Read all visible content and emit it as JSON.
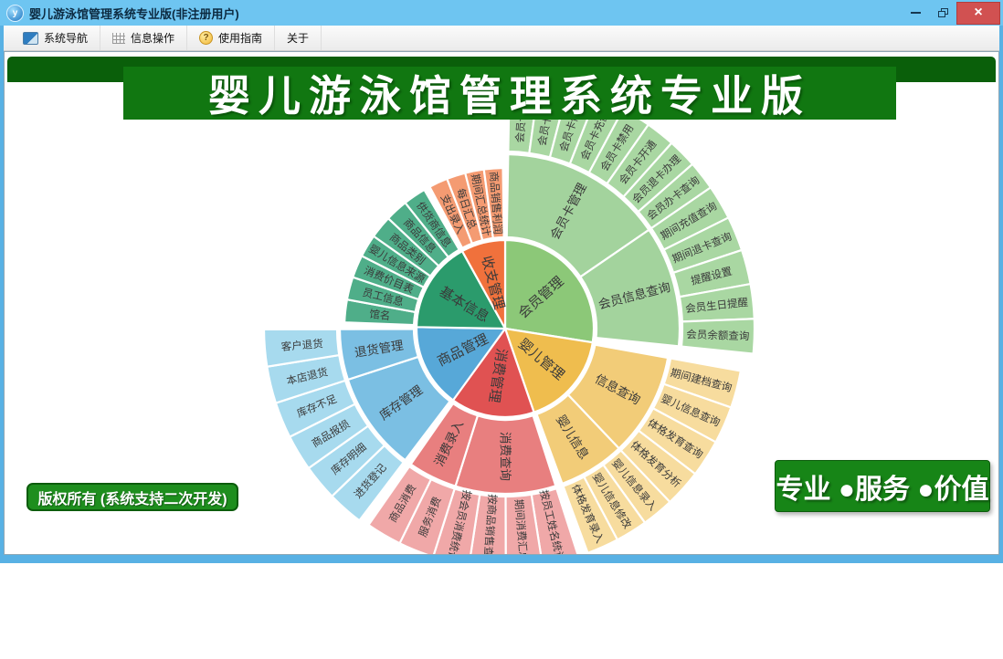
{
  "window": {
    "title": "婴儿游泳馆管理系统专业版(非注册用户)",
    "app_icon_letter": "y",
    "controls": {
      "close": "×"
    }
  },
  "toolbar": {
    "items": [
      {
        "label": "系统导航",
        "icon": "system-nav-icon"
      },
      {
        "label": "信息操作",
        "icon": "info-grid-icon"
      },
      {
        "label": "使用指南",
        "icon": "guide-icon",
        "glyph": "?"
      },
      {
        "label": "关于",
        "icon": ""
      }
    ]
  },
  "banner": {
    "title": "婴儿游泳馆管理系统专业版"
  },
  "buttons": {
    "copyright": "版权所有 (系统支持二次开发)",
    "slogan": "专业 ●服务 ●价值"
  },
  "chart_data": {
    "type": "sunburst",
    "center": [
      548,
      303
    ],
    "stroke": "#ffffff",
    "label_color": "#3a3a3a",
    "flip_threshold_deg": 195,
    "font_px": {
      "level1": 15,
      "level2": 13.5,
      "level3": 11.5
    },
    "sections": [
      {
        "name": "会员管理",
        "ring1_angle": [
          0,
          99
        ],
        "label_angle": 48.5,
        "colors": [
          "#8CC878",
          "#A3D39D",
          "#A9D7A2"
        ],
        "radii": {
          "r1": 97,
          "r2": [
            100,
            191
          ],
          "r3": [
            194,
            273
          ]
        },
        "label_radii": [
          52,
          146,
          233
        ],
        "children": [
          {
            "name": "会员卡管理",
            "angle": [
              1,
              55.5
            ],
            "leaves": [
              "会员卡挂失",
              "会员卡补办",
              "会员卡修改",
              "会员卡充值",
              "会员卡禁用",
              "会员卡开通",
              "会员退卡办理",
              "会员办卡查询"
            ]
          },
          {
            "name": "会员信息查询",
            "angle": [
              55.5,
              95.8
            ],
            "leaves": [
              "期间充值查询",
              "期间退卡查询",
              "提醒设置",
              "会员生日提醒",
              "会员余额查询"
            ]
          }
        ]
      },
      {
        "name": "婴儿管理",
        "ring1_angle": [
          99,
          161
        ],
        "label_angle": 130,
        "colors": [
          "#EFBD4E",
          "#F2CC78",
          "#F7DC9E"
        ],
        "radii": {
          "r1": 97,
          "r2": [
            100,
            181
          ],
          "r3": [
            184,
            262
          ]
        },
        "label_radii": [
          52,
          140,
          222
        ],
        "children": [
          {
            "name": "信息查询",
            "angle": [
              100.2,
              136.5
            ],
            "leaves": [
              "期间建档查询",
              "婴儿信息查询",
              "体格发育查询",
              "体格发育分析"
            ]
          },
          {
            "name": "婴儿信息",
            "angle": [
              136.5,
              159.8
            ],
            "leaves": [
              "婴儿信息录入",
              "婴儿信息修改",
              "体格发育录入"
            ]
          }
        ]
      },
      {
        "name": "消费管理",
        "ring1_angle": [
          161,
          216
        ],
        "label_angle": 188.5,
        "colors": [
          "#E05252",
          "#E87F7F",
          "#F0A8A8"
        ],
        "radii": {
          "r1": 97,
          "r2": [
            100,
            181
          ],
          "r3": [
            184,
            262
          ]
        },
        "label_radii": [
          52,
          140,
          222
        ],
        "children": [
          {
            "name": "消费查询",
            "angle": [
              162.2,
              197.5
            ],
            "leaves": [
              "按员工姓名统计",
              "期间消费汇总",
              "按商品销售查询",
              "按会员消费统计"
            ]
          },
          {
            "name": "消费录入",
            "angle": [
              197.5,
              214.8
            ],
            "leaves": [
              "服务消费",
              "商品消费"
            ]
          }
        ]
      },
      {
        "name": "商品管理",
        "ring1_angle": [
          216,
          271
        ],
        "label_angle": 243.5,
        "colors": [
          "#57A8D8",
          "#7BBFE3",
          "#A7DAEE"
        ],
        "radii": {
          "r1": 97,
          "r2": [
            100,
            181
          ],
          "r3": [
            184,
            264
          ]
        },
        "label_radii": [
          52,
          140,
          223
        ],
        "children": [
          {
            "name": "库存管理",
            "angle": [
              217.2,
              252
            ],
            "leaves": [
              "进货登记",
              "库存明细",
              "商品报损",
              "库存不足"
            ]
          },
          {
            "name": "退货管理",
            "angle": [
              252,
              269.8
            ],
            "leaves": [
              "本店退货",
              "客户退货"
            ]
          }
        ]
      },
      {
        "name": "基本信息",
        "ring1_angle": [
          271,
          331
        ],
        "label_angle": 301,
        "colors": [
          "#2B9B6C",
          "#4FAE89"
        ],
        "radii": {
          "r1": 97,
          "r2": [
            100,
            176
          ]
        },
        "label_radii": [
          52,
          138
        ],
        "direct_leaves": {
          "angle": [
            272.2,
            329.8
          ],
          "items": [
            "馆名",
            "员工信息",
            "消费价目表",
            "婴儿信息来源",
            "商品类别",
            "商品信息",
            "供货商信息"
          ]
        }
      },
      {
        "name": "收支管理",
        "ring1_angle": [
          331,
          360
        ],
        "label_angle": 345.5,
        "colors": [
          "#F0713C",
          "#F49B72"
        ],
        "radii": {
          "r1": 97,
          "r2": [
            100,
            176
          ]
        },
        "label_radii": [
          52,
          138
        ],
        "direct_leaves": {
          "angle": [
            332,
            359.2
          ],
          "items": [
            "支出录入",
            "每日汇总",
            "期间汇总统计",
            "商品销售利润"
          ]
        }
      }
    ]
  }
}
